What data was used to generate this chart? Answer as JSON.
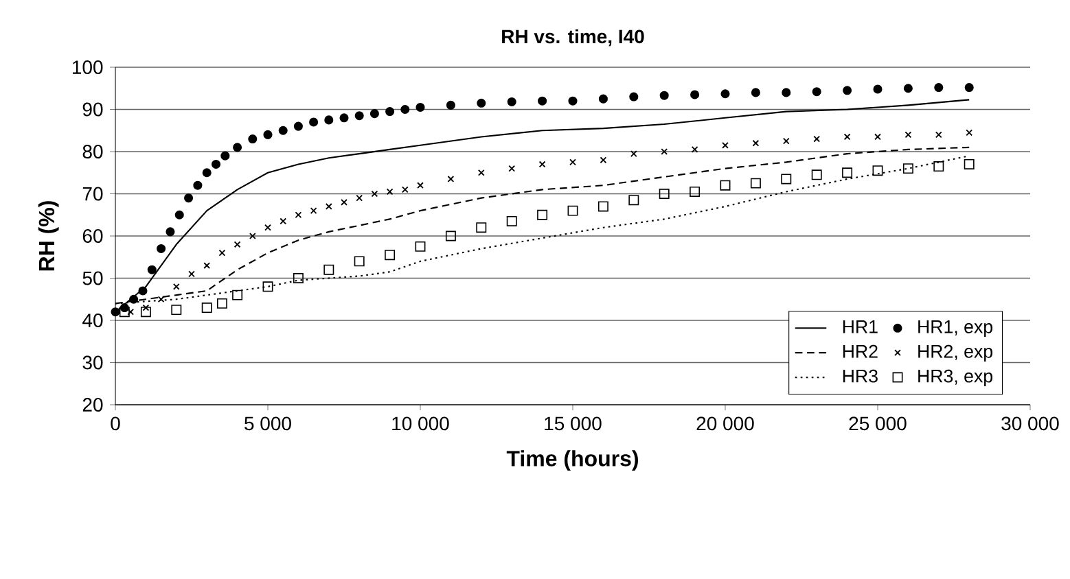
{
  "chart_data": {
    "type": "line",
    "title": "RH vs. time, I40",
    "xlabel": "Time (hours)",
    "ylabel": "RH (%)",
    "xlim": [
      0,
      30000
    ],
    "ylim": [
      20,
      100
    ],
    "xticks": [
      0,
      {
        "value": 5000,
        "label": "5 000"
      },
      {
        "value": 10000,
        "label": "10 000"
      },
      {
        "value": 15000,
        "label": "15 000"
      },
      {
        "value": 20000,
        "label": "20 000"
      },
      {
        "value": 25000,
        "label": "25 000"
      },
      {
        "value": 30000,
        "label": "30 000"
      }
    ],
    "yticks": [
      20,
      30,
      40,
      50,
      60,
      70,
      80,
      90,
      100
    ],
    "grid": "y",
    "legend": "bottom right",
    "series": [
      {
        "name": "HR1",
        "line_style": "solid",
        "marker": "none",
        "color": "#000000",
        "x": [
          0,
          1000,
          2000,
          3000,
          4000,
          5000,
          6000,
          7000,
          8000,
          9000,
          10000,
          12000,
          14000,
          16000,
          18000,
          20000,
          22000,
          24000,
          26000,
          28000
        ],
        "values": [
          42,
          48,
          58,
          66,
          71,
          75,
          77,
          78.5,
          79.5,
          80.5,
          81.5,
          83.5,
          85,
          85.5,
          86.5,
          88,
          89.5,
          90,
          91,
          92.3
        ]
      },
      {
        "name": "HR1, exp",
        "type": "scatter",
        "marker": "circle",
        "color": "#000000",
        "x": [
          0,
          300,
          600,
          900,
          1200,
          1500,
          1800,
          2100,
          2400,
          2700,
          3000,
          3300,
          3600,
          4000,
          4500,
          5000,
          5500,
          6000,
          6500,
          7000,
          7500,
          8000,
          8500,
          9000,
          9500,
          10000,
          11000,
          12000,
          13000,
          14000,
          15000,
          16000,
          17000,
          18000,
          19000,
          20000,
          21000,
          22000,
          23000,
          24000,
          25000,
          26000,
          27000,
          28000
        ],
        "values": [
          42,
          43,
          45,
          47,
          52,
          57,
          61,
          65,
          69,
          72,
          75,
          77,
          79,
          81,
          83,
          84,
          85,
          86,
          87,
          87.5,
          88,
          88.5,
          89,
          89.5,
          90,
          90.5,
          91,
          91.5,
          91.8,
          92,
          92,
          92.5,
          93,
          93.3,
          93.5,
          93.7,
          94,
          94,
          94.2,
          94.5,
          94.8,
          95,
          95.2,
          95.2
        ]
      },
      {
        "name": "HR2",
        "line_style": "dashed",
        "marker": "none",
        "color": "#000000",
        "x": [
          0,
          1000,
          2000,
          3000,
          4000,
          5000,
          6000,
          7000,
          8000,
          9000,
          10000,
          12000,
          14000,
          16000,
          18000,
          20000,
          22000,
          24000,
          26000,
          28000
        ],
        "values": [
          44,
          45,
          46,
          47,
          52,
          56,
          59,
          61,
          62.5,
          64,
          66,
          69,
          71,
          72,
          74,
          76,
          77.5,
          79.5,
          80.5,
          81
        ]
      },
      {
        "name": "HR2, exp",
        "type": "scatter",
        "marker": "cross",
        "color": "#000000",
        "x": [
          500,
          1000,
          1500,
          2000,
          2500,
          3000,
          3500,
          4000,
          4500,
          5000,
          5500,
          6000,
          6500,
          7000,
          7500,
          8000,
          8500,
          9000,
          9500,
          10000,
          11000,
          12000,
          13000,
          14000,
          15000,
          16000,
          17000,
          18000,
          19000,
          20000,
          21000,
          22000,
          23000,
          24000,
          25000,
          26000,
          27000,
          28000
        ],
        "values": [
          42,
          43,
          45,
          48,
          51,
          53,
          56,
          58,
          60,
          62,
          63.5,
          65,
          66,
          67,
          68,
          69,
          70,
          70.5,
          71,
          72,
          73.5,
          75,
          76,
          77,
          77.5,
          78,
          79.5,
          80,
          80.5,
          81.5,
          82,
          82.5,
          83,
          83.5,
          83.5,
          84,
          84,
          84.5
        ]
      },
      {
        "name": "HR3",
        "line_style": "dotted",
        "marker": "none",
        "color": "#000000",
        "x": [
          0,
          1000,
          2000,
          3000,
          4000,
          5000,
          6000,
          7000,
          8000,
          9000,
          10000,
          12000,
          14000,
          16000,
          18000,
          20000,
          22000,
          24000,
          26000,
          28000
        ],
        "values": [
          44,
          44.5,
          45,
          46,
          47,
          48,
          49.5,
          50,
          50.5,
          51.5,
          54,
          57,
          59.5,
          62,
          64,
          67,
          70.5,
          73.5,
          76,
          79
        ]
      },
      {
        "name": "HR3, exp",
        "type": "scatter",
        "marker": "square",
        "color": "#000000",
        "x": [
          300,
          1000,
          2000,
          3000,
          3500,
          4000,
          5000,
          6000,
          7000,
          8000,
          9000,
          10000,
          11000,
          12000,
          13000,
          14000,
          15000,
          16000,
          17000,
          18000,
          19000,
          20000,
          21000,
          22000,
          23000,
          24000,
          25000,
          26000,
          27000,
          28000
        ],
        "values": [
          42,
          42,
          42.5,
          43,
          44,
          46,
          48,
          50,
          52,
          54,
          55.5,
          57.5,
          60,
          62,
          63.5,
          65,
          66,
          67,
          68.5,
          70,
          70.5,
          72,
          72.5,
          73.5,
          74.5,
          75,
          75.5,
          76,
          76.5,
          77
        ]
      }
    ]
  }
}
